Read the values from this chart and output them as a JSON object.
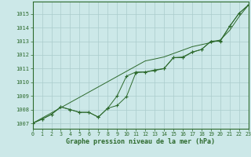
{
  "x": [
    0,
    1,
    2,
    3,
    4,
    5,
    6,
    7,
    8,
    9,
    10,
    11,
    12,
    13,
    14,
    15,
    16,
    17,
    18,
    19,
    20,
    21,
    22,
    23
  ],
  "line_measured": [
    1007.0,
    1007.3,
    1007.65,
    1008.2,
    1008.0,
    1007.8,
    1007.8,
    1007.45,
    1008.1,
    1008.3,
    1008.95,
    1010.7,
    1010.75,
    1010.85,
    1011.0,
    1011.8,
    1011.8,
    1012.2,
    1012.4,
    1013.0,
    1013.0,
    1014.1,
    1015.05,
    1015.65
  ],
  "line_forecast": [
    1007.0,
    1007.3,
    1007.65,
    1008.2,
    1008.0,
    1007.8,
    1007.8,
    1007.45,
    1008.1,
    1009.0,
    1010.45,
    1010.75,
    1010.75,
    1010.9,
    1011.0,
    1011.8,
    1011.85,
    1012.2,
    1012.4,
    1013.0,
    1013.05,
    1014.1,
    1015.05,
    1015.65
  ],
  "trend": [
    1007.0,
    1007.38,
    1007.76,
    1008.14,
    1008.52,
    1008.9,
    1009.28,
    1009.66,
    1010.04,
    1010.42,
    1010.8,
    1011.18,
    1011.56,
    1011.7,
    1011.85,
    1012.1,
    1012.35,
    1012.6,
    1012.75,
    1012.9,
    1013.1,
    1013.8,
    1014.8,
    1015.65
  ],
  "line_color": "#2d6a2d",
  "bg_color": "#cce8e8",
  "grid_color": "#aacccc",
  "yticks": [
    1007,
    1008,
    1009,
    1010,
    1011,
    1012,
    1013,
    1014,
    1015
  ],
  "xlabel": "Graphe pression niveau de la mer (hPa)",
  "ylim": [
    1006.6,
    1015.9
  ],
  "xlim": [
    0,
    23
  ]
}
